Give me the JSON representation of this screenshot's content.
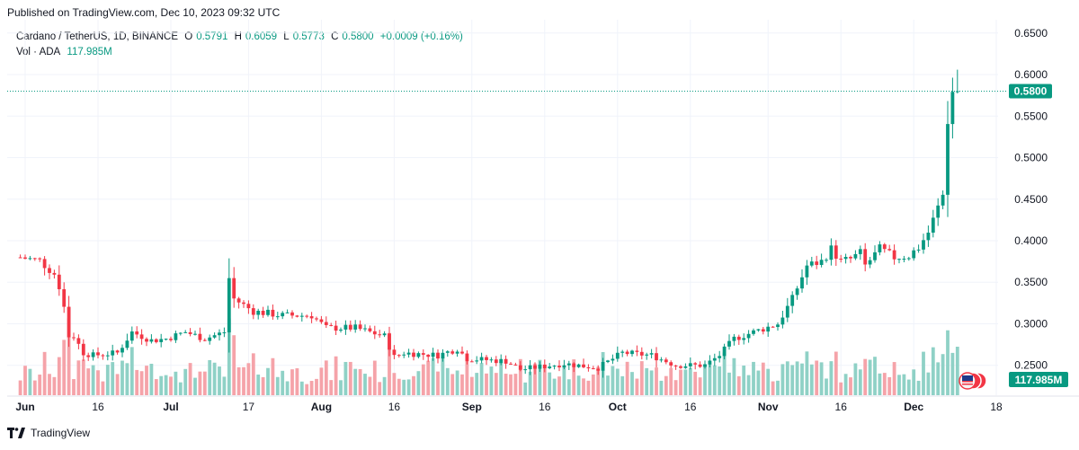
{
  "header": {
    "published": "Published on TradingView.com, Dec 10, 2023 09:32 UTC"
  },
  "legend": {
    "symbol": "Cardano / TetherUS, 1D, BINANCE",
    "o_label": "O",
    "o": "0.5791",
    "h_label": "H",
    "h": "0.6059",
    "l_label": "L",
    "l": "0.5773",
    "c_label": "C",
    "c": "0.5800",
    "change": "+0.0009 (+0.16%)",
    "vol_label": "Vol · ADA",
    "vol": "117.985M"
  },
  "footer": {
    "brand": "TradingView"
  },
  "colors": {
    "up": "#089981",
    "down": "#f23645",
    "up_vol": "#8fd1c6",
    "down_vol": "#f5a3a9",
    "grid": "#f0f3fa"
  },
  "chart_data": {
    "type": "candlestick",
    "price_axis": {
      "ticks": [
        "0.6500",
        "0.6000",
        "0.5500",
        "0.5000",
        "0.4500",
        "0.4000",
        "0.3500",
        "0.3000",
        "0.2500"
      ],
      "range": [
        0.214,
        0.666
      ],
      "last_price_label": "0.5800",
      "last_price": 0.58
    },
    "time_axis": {
      "start": "2023-06-01",
      "end": "2023-12-18",
      "ticks": [
        {
          "label": "Jun",
          "date": "2023-06-01",
          "major": true
        },
        {
          "label": "16",
          "date": "2023-06-16",
          "major": false
        },
        {
          "label": "Jul",
          "date": "2023-07-01",
          "major": true
        },
        {
          "label": "17",
          "date": "2023-07-17",
          "major": false
        },
        {
          "label": "Aug",
          "date": "2023-08-01",
          "major": true
        },
        {
          "label": "16",
          "date": "2023-08-16",
          "major": false
        },
        {
          "label": "Sep",
          "date": "2023-09-01",
          "major": true
        },
        {
          "label": "16",
          "date": "2023-09-16",
          "major": false
        },
        {
          "label": "Oct",
          "date": "2023-10-01",
          "major": true
        },
        {
          "label": "16",
          "date": "2023-10-16",
          "major": false
        },
        {
          "label": "Nov",
          "date": "2023-11-01",
          "major": true
        },
        {
          "label": "16",
          "date": "2023-11-16",
          "major": false
        },
        {
          "label": "Dec",
          "date": "2023-12-01",
          "major": true
        },
        {
          "label": "18",
          "date": "2023-12-18",
          "major": false
        }
      ]
    },
    "volume_axis": {
      "last_label": "117.985M"
    },
    "close_anchors": [
      [
        "2023-05-31",
        0.38
      ],
      [
        "2023-06-04",
        0.376
      ],
      [
        "2023-06-07",
        0.36
      ],
      [
        "2023-06-08",
        0.345
      ],
      [
        "2023-06-09",
        0.32
      ],
      [
        "2023-06-10",
        0.285
      ],
      [
        "2023-06-11",
        0.285
      ],
      [
        "2023-06-13",
        0.265
      ],
      [
        "2023-06-15",
        0.262
      ],
      [
        "2023-06-20",
        0.265
      ],
      [
        "2023-06-23",
        0.29
      ],
      [
        "2023-06-27",
        0.28
      ],
      [
        "2023-06-30",
        0.282
      ],
      [
        "2023-07-04",
        0.29
      ],
      [
        "2023-07-08",
        0.282
      ],
      [
        "2023-07-12",
        0.29
      ],
      [
        "2023-07-13",
        0.355
      ],
      [
        "2023-07-14",
        0.33
      ],
      [
        "2023-07-18",
        0.315
      ],
      [
        "2023-07-24",
        0.31
      ],
      [
        "2023-07-30",
        0.31
      ],
      [
        "2023-08-02",
        0.295
      ],
      [
        "2023-08-08",
        0.295
      ],
      [
        "2023-08-14",
        0.285
      ],
      [
        "2023-08-16",
        0.26
      ],
      [
        "2023-08-18",
        0.265
      ],
      [
        "2023-08-25",
        0.262
      ],
      [
        "2023-08-29",
        0.27
      ],
      [
        "2023-08-31",
        0.258
      ],
      [
        "2023-09-08",
        0.255
      ],
      [
        "2023-09-11",
        0.245
      ],
      [
        "2023-09-20",
        0.252
      ],
      [
        "2023-09-27",
        0.247
      ],
      [
        "2023-10-02",
        0.265
      ],
      [
        "2023-10-08",
        0.262
      ],
      [
        "2023-10-13",
        0.25
      ],
      [
        "2023-10-19",
        0.25
      ],
      [
        "2023-10-22",
        0.262
      ],
      [
        "2023-10-25",
        0.282
      ],
      [
        "2023-10-30",
        0.292
      ],
      [
        "2023-11-03",
        0.3
      ],
      [
        "2023-11-06",
        0.33
      ],
      [
        "2023-11-09",
        0.37
      ],
      [
        "2023-11-12",
        0.375
      ],
      [
        "2023-11-14",
        0.39
      ],
      [
        "2023-11-16",
        0.375
      ],
      [
        "2023-11-18",
        0.378
      ],
      [
        "2023-11-20",
        0.385
      ],
      [
        "2023-11-21",
        0.37
      ],
      [
        "2023-11-24",
        0.39
      ],
      [
        "2023-11-27",
        0.38
      ],
      [
        "2023-11-30",
        0.382
      ],
      [
        "2023-12-02",
        0.392
      ],
      [
        "2023-12-04",
        0.41
      ],
      [
        "2023-12-06",
        0.44
      ],
      [
        "2023-12-07",
        0.455
      ],
      [
        "2023-12-08",
        0.545
      ],
      [
        "2023-12-09",
        0.579
      ],
      [
        "2023-12-10",
        0.58
      ]
    ],
    "last_candle": {
      "date": "2023-12-10",
      "open": 0.5791,
      "high": 0.6059,
      "low": 0.5773,
      "close": 0.58,
      "volume": "117.985M"
    }
  }
}
